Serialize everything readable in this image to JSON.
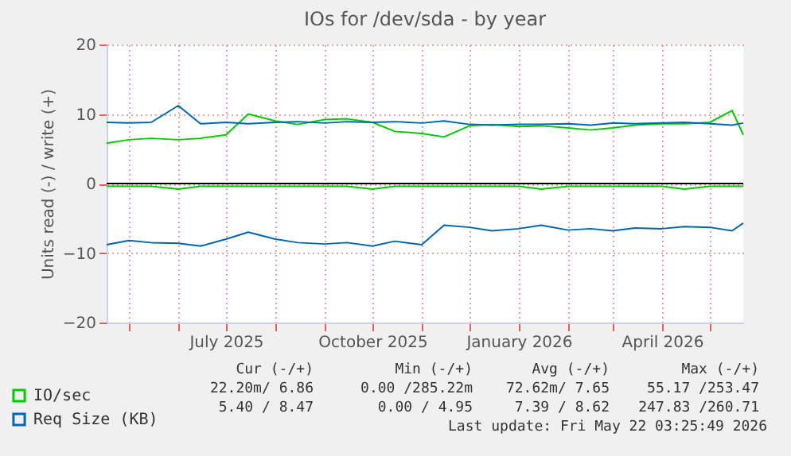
{
  "chart_data": {
    "type": "line",
    "title": "IOs for /dev/sda - by year",
    "ylabel": "Units read (-) / write (+)",
    "x": [
      "2025-04-17",
      "2025-05-01",
      "2025-05-15",
      "2025-06-01",
      "2025-06-15",
      "2025-07-01",
      "2025-07-15",
      "2025-08-01",
      "2025-08-15",
      "2025-09-01",
      "2025-09-15",
      "2025-10-01",
      "2025-10-15",
      "2025-11-01",
      "2025-11-15",
      "2025-12-01",
      "2025-12-15",
      "2026-01-01",
      "2026-01-15",
      "2026-02-01",
      "2026-02-15",
      "2026-03-01",
      "2026-03-15",
      "2026-04-01",
      "2026-04-15",
      "2026-05-01",
      "2026-05-15",
      "2026-05-22"
    ],
    "series": [
      {
        "name": "IO/sec",
        "color": "#00cc00",
        "values": [
          5.8,
          6.3,
          6.5,
          6.3,
          6.5,
          7.0,
          10.0,
          9.0,
          8.5,
          9.2,
          9.3,
          8.8,
          7.5,
          7.2,
          6.7,
          8.3,
          8.5,
          8.2,
          8.3,
          8.0,
          7.7,
          8.0,
          8.4,
          8.6,
          8.6,
          8.8,
          10.5,
          7.0
        ]
      },
      {
        "name": "Req Size (KB)",
        "color": "#0066b3",
        "values": [
          8.8,
          8.7,
          8.8,
          11.2,
          8.6,
          8.8,
          8.6,
          8.8,
          8.9,
          8.7,
          8.9,
          8.8,
          8.9,
          8.7,
          9.0,
          8.5,
          8.4,
          8.5,
          8.5,
          8.6,
          8.4,
          8.7,
          8.6,
          8.7,
          8.8,
          8.6,
          8.4,
          8.7
        ]
      },
      {
        "color": "#00cc00",
        "values": [
          -0.4,
          -0.4,
          -0.4,
          -0.8,
          -0.4,
          -0.4,
          -0.4,
          -0.4,
          -0.4,
          -0.4,
          -0.4,
          -0.8,
          -0.4,
          -0.4,
          -0.4,
          -0.4,
          -0.4,
          -0.4,
          -0.8,
          -0.4,
          -0.4,
          -0.4,
          -0.4,
          -0.4,
          -0.8,
          -0.4,
          -0.4,
          -0.4
        ]
      },
      {
        "color": "#0066b3",
        "values": [
          -8.8,
          -8.2,
          -8.5,
          -8.6,
          -9.0,
          -8.0,
          -7.0,
          -8.0,
          -8.5,
          -8.7,
          -8.5,
          -9.0,
          -8.3,
          -8.8,
          -6.0,
          -6.3,
          -6.8,
          -6.5,
          -6.0,
          -6.7,
          -6.5,
          -6.8,
          -6.4,
          -6.5,
          -6.2,
          -6.3,
          -6.8,
          -5.7
        ]
      }
    ],
    "xlim": [
      "2025-04-17",
      "2026-05-22"
    ],
    "xticks": [
      {
        "value": "2025-05-01",
        "label": null
      },
      {
        "value": "2025-06-01",
        "label": null
      },
      {
        "value": "2025-07-01",
        "label": "July 2025"
      },
      {
        "value": "2025-08-01",
        "label": null
      },
      {
        "value": "2025-09-01",
        "label": null
      },
      {
        "value": "2025-10-01",
        "label": "October 2025"
      },
      {
        "value": "2025-11-01",
        "label": null
      },
      {
        "value": "2025-12-01",
        "label": null
      },
      {
        "value": "2026-01-01",
        "label": "January 2026"
      },
      {
        "value": "2026-02-01",
        "label": null
      },
      {
        "value": "2026-03-01",
        "label": null
      },
      {
        "value": "2026-04-01",
        "label": "April 2026"
      },
      {
        "value": "2026-05-01",
        "label": null
      }
    ],
    "ylim": [
      -20,
      20
    ],
    "yticks": [
      -20,
      -10,
      0,
      10,
      20
    ],
    "ref_lines": [
      {
        "axis": "y",
        "value": 0,
        "color": "#000000"
      }
    ],
    "grid": true,
    "legend": "bottom",
    "annotations": [
      "Cur (-/+)",
      "Min (-/+)",
      "Avg (-/+)",
      "Max (-/+)",
      "22.20m/ 6.86",
      "0.00 /285.22m",
      "72.62m/ 7.65",
      "55.17 /253.47",
      "5.40 / 8.47",
      "0.00 / 4.95",
      "7.39 / 8.62",
      "247.83 /260.71",
      "Last update: Fri May 22 03:25:49 2026"
    ]
  }
}
